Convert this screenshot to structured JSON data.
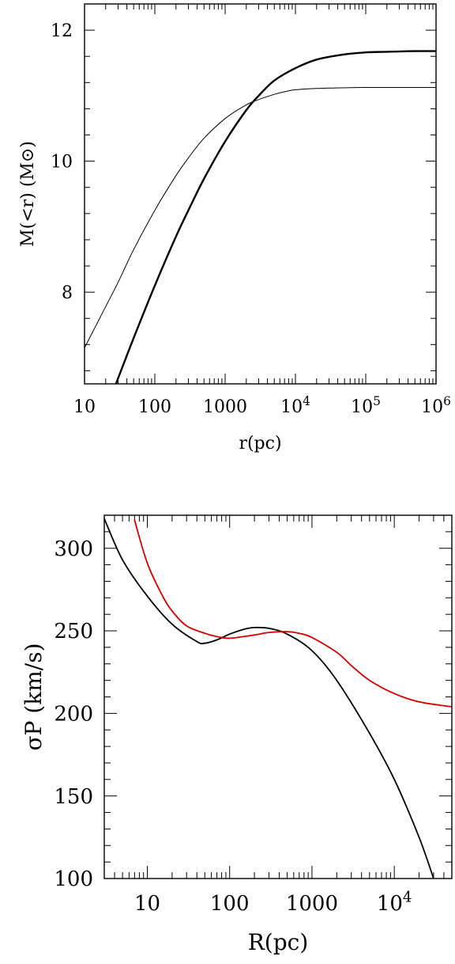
{
  "chart_data": [
    {
      "type": "line",
      "xlabel": "r(pc)",
      "ylabel": "M(<r)  (M⊙)",
      "xscale": "log",
      "xlim": [
        10,
        1000000
      ],
      "ylim": [
        6.6,
        12.4
      ],
      "x_ticks": [
        {
          "value": 10,
          "label": "10"
        },
        {
          "value": 100,
          "label": "100"
        },
        {
          "value": 1000,
          "label": "1000"
        },
        {
          "value": 10000,
          "base": "10",
          "exp": "4"
        },
        {
          "value": 100000,
          "base": "10",
          "exp": "5"
        },
        {
          "value": 1000000,
          "base": "10",
          "exp": "6"
        }
      ],
      "y_ticks": [
        {
          "value": 8,
          "label": "8"
        },
        {
          "value": 10,
          "label": "10"
        },
        {
          "value": 12,
          "label": "12"
        }
      ],
      "series": [
        {
          "color": "#000000",
          "width": 1.0,
          "x": [
            10,
            20,
            30,
            50,
            100,
            200,
            300,
            500,
            1000,
            2000,
            3000,
            5000,
            7000,
            10000,
            20000,
            50000,
            100000,
            1000000
          ],
          "y": [
            7.15,
            7.78,
            8.15,
            8.65,
            9.25,
            9.78,
            10.05,
            10.35,
            10.65,
            10.86,
            10.94,
            11.02,
            11.06,
            11.09,
            11.11,
            11.12,
            11.125,
            11.125
          ]
        },
        {
          "color": "#000000",
          "width": 2.4,
          "x": [
            28,
            50,
            100,
            200,
            300,
            500,
            1000,
            2000,
            3000,
            5000,
            10000,
            20000,
            50000,
            100000,
            200000,
            500000,
            1000000
          ],
          "y": [
            6.6,
            7.3,
            8.1,
            8.85,
            9.25,
            9.73,
            10.3,
            10.78,
            11.0,
            11.23,
            11.42,
            11.55,
            11.63,
            11.66,
            11.67,
            11.68,
            11.68
          ]
        }
      ]
    },
    {
      "type": "line",
      "xlabel": "R(pc)",
      "ylabel": "σP  (km/s)",
      "xscale": "log",
      "xlim": [
        3,
        50000
      ],
      "ylim": [
        100,
        320
      ],
      "x_ticks": [
        {
          "value": 10,
          "label": "10"
        },
        {
          "value": 100,
          "label": "100"
        },
        {
          "value": 1000,
          "label": "1000"
        },
        {
          "value": 10000,
          "base": "10",
          "exp": "4"
        }
      ],
      "y_ticks": [
        {
          "value": 100,
          "label": "100"
        },
        {
          "value": 150,
          "label": "150"
        },
        {
          "value": 200,
          "label": "200"
        },
        {
          "value": 250,
          "label": "250"
        },
        {
          "value": 300,
          "label": "300"
        }
      ],
      "series": [
        {
          "color": "#000000",
          "width": 1.8,
          "x": [
            3,
            5,
            10,
            20,
            40,
            50,
            70,
            100,
            150,
            200,
            300,
            500,
            1000,
            2000,
            5000,
            10000,
            20000,
            30000
          ],
          "y": [
            318,
            293,
            271,
            254,
            243.5,
            242.5,
            244.5,
            248,
            251,
            252,
            251.5,
            248,
            238,
            220,
            188,
            160,
            125,
            100
          ]
        },
        {
          "color": "#d40000",
          "width": 1.8,
          "x": [
            7,
            10,
            15,
            20,
            30,
            50,
            70,
            100,
            200,
            300,
            500,
            700,
            1000,
            2000,
            3000,
            5000,
            10000,
            20000,
            50000
          ],
          "y": [
            317,
            291,
            272,
            262,
            253,
            248.5,
            246.5,
            245.5,
            247.5,
            249,
            249.5,
            248.5,
            246,
            237,
            229,
            220,
            212,
            207,
            204
          ]
        }
      ]
    }
  ]
}
